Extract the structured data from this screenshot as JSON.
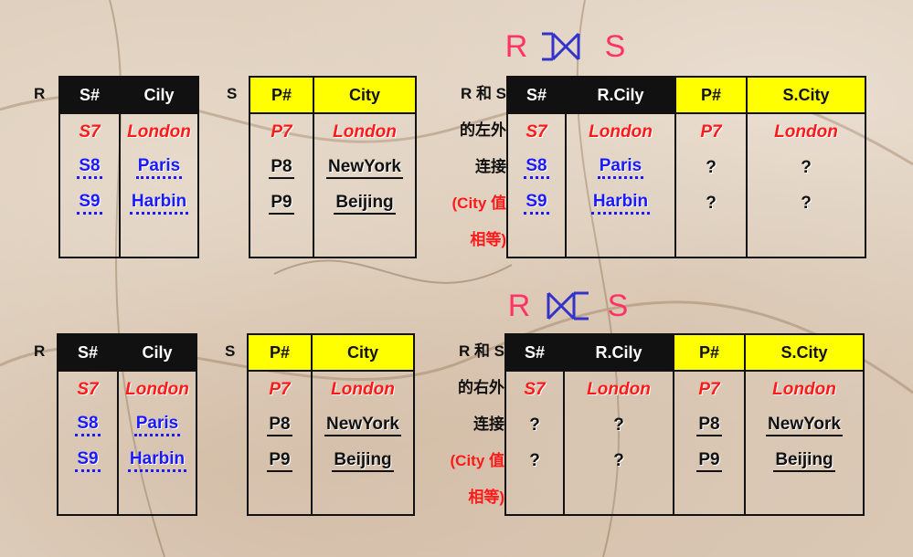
{
  "colors": {
    "title": "#ff3366",
    "symbol": "#3333cc",
    "red": "#ff1a1a",
    "blue": "#1a1aff",
    "yellow": "#ffff00",
    "dark": "#111111"
  },
  "left_join": {
    "title_r": "R",
    "title_s": "S",
    "symbol": "left-outer-join-icon",
    "r_label": "R",
    "s_label": "S",
    "R": {
      "headers": [
        "S#",
        "Cily"
      ],
      "rows": [
        {
          "s": "S7",
          "city": "London",
          "style": "red"
        },
        {
          "s": "S8",
          "city": "Paris",
          "style": "blue"
        },
        {
          "s": "S9",
          "city": "Harbin",
          "style": "blue"
        }
      ]
    },
    "S": {
      "headers": [
        "P#",
        "City"
      ],
      "rows": [
        {
          "p": "P7",
          "city": "London",
          "style": "red"
        },
        {
          "p": "P8",
          "city": "NewYork",
          "style": "under"
        },
        {
          "p": "P9",
          "city": "Beijing",
          "style": "under"
        }
      ]
    },
    "mid": {
      "line1": "R 和 S",
      "line2": "的左外",
      "line3": "连接",
      "line4": "(City 值",
      "line5": "相等)"
    },
    "result": {
      "headers": [
        "S#",
        "R.Cily",
        "P#",
        "S.City"
      ],
      "rows": [
        [
          "S7",
          "London",
          "P7",
          "London"
        ],
        [
          "S8",
          "Paris",
          "?",
          "?"
        ],
        [
          "S9",
          "Harbin",
          "?",
          "?"
        ]
      ]
    }
  },
  "right_join": {
    "title_r": "R",
    "title_s": "S",
    "symbol": "right-outer-join-icon",
    "r_label": "R",
    "s_label": "S",
    "R": {
      "headers": [
        "S#",
        "Cily"
      ],
      "rows": [
        {
          "s": "S7",
          "city": "London",
          "style": "red"
        },
        {
          "s": "S8",
          "city": "Paris",
          "style": "blue"
        },
        {
          "s": "S9",
          "city": "Harbin",
          "style": "blue"
        }
      ]
    },
    "S": {
      "headers": [
        "P#",
        "City"
      ],
      "rows": [
        {
          "p": "P7",
          "city": "London",
          "style": "red"
        },
        {
          "p": "P8",
          "city": "NewYork",
          "style": "under"
        },
        {
          "p": "P9",
          "city": "Beijing",
          "style": "under"
        }
      ]
    },
    "mid": {
      "line1": "R 和 S",
      "line2": "的右外",
      "line3": "连接",
      "line4": "(City 值",
      "line5": "相等)"
    },
    "result": {
      "headers": [
        "S#",
        "R.Cily",
        "P#",
        "S.City"
      ],
      "rows": [
        [
          "S7",
          "London",
          "P7",
          "London"
        ],
        [
          "?",
          "?",
          "P8",
          "NewYork"
        ],
        [
          "?",
          "?",
          "P9",
          "Beijing"
        ]
      ]
    }
  }
}
